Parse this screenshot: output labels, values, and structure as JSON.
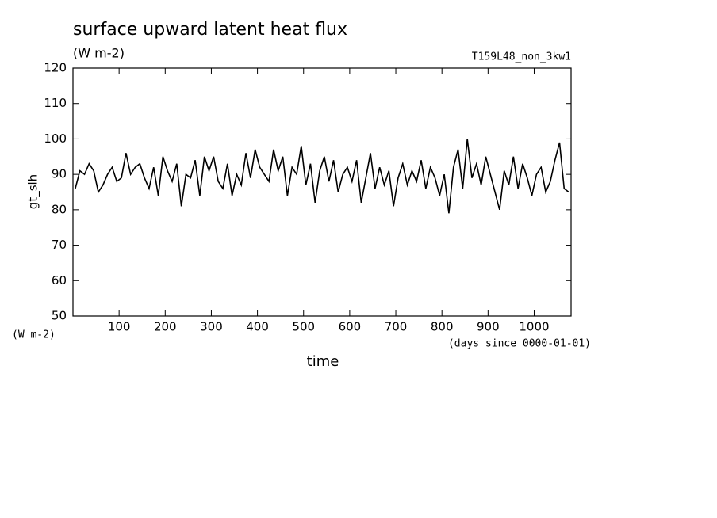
{
  "chart_data": {
    "type": "line",
    "title": "surface upward latent heat flux",
    "subtitle": "(W m-2)",
    "run_label": "T159L48_non_3kw1",
    "y_label": "gt_slh",
    "y_unit": "(W m-2)",
    "x_label": "time",
    "x_unit": "(days since 0000-01-01)",
    "color": "#000000",
    "x": [
      5,
      15,
      25,
      35,
      45,
      55,
      65,
      75,
      85,
      95,
      105,
      115,
      125,
      135,
      145,
      155,
      165,
      175,
      185,
      195,
      205,
      215,
      225,
      235,
      245,
      255,
      265,
      275,
      285,
      295,
      305,
      315,
      325,
      335,
      345,
      355,
      365,
      375,
      385,
      395,
      405,
      415,
      425,
      435,
      445,
      455,
      465,
      475,
      485,
      495,
      505,
      515,
      525,
      535,
      545,
      555,
      565,
      575,
      585,
      595,
      605,
      615,
      625,
      635,
      645,
      655,
      665,
      675,
      685,
      695,
      705,
      715,
      725,
      735,
      745,
      755,
      765,
      775,
      785,
      795,
      805,
      815,
      825,
      835,
      845,
      855,
      865,
      875,
      885,
      895,
      905,
      915,
      925,
      935,
      945,
      955,
      965,
      975,
      985,
      995,
      1005,
      1015,
      1025,
      1035,
      1045,
      1055,
      1065,
      1075
    ],
    "values": [
      86,
      91,
      90,
      93,
      91,
      85,
      87,
      90,
      92,
      88,
      89,
      96,
      90,
      92,
      93,
      89,
      86,
      92,
      84,
      95,
      91,
      88,
      93,
      81,
      90,
      89,
      94,
      84,
      95,
      91,
      95,
      88,
      86,
      93,
      84,
      90,
      87,
      96,
      89,
      97,
      92,
      90,
      88,
      97,
      91,
      95,
      84,
      92,
      90,
      98,
      87,
      93,
      82,
      91,
      95,
      88,
      94,
      85,
      90,
      92,
      88,
      94,
      82,
      89,
      96,
      86,
      92,
      87,
      91,
      81,
      89,
      93,
      87,
      91,
      88,
      94,
      86,
      92,
      89,
      84,
      90,
      79,
      92,
      97,
      86,
      100,
      89,
      93,
      87,
      95,
      90,
      85,
      80,
      91,
      87,
      95,
      86,
      93,
      89,
      84,
      90,
      92,
      85,
      88,
      94,
      99,
      86,
      85
    ],
    "xlim": [
      0,
      1080
    ],
    "ylim": [
      50,
      120
    ],
    "xticks": [
      100,
      200,
      300,
      400,
      500,
      600,
      700,
      800,
      900,
      1000
    ],
    "yticks": [
      50,
      60,
      70,
      80,
      90,
      100,
      110,
      120
    ]
  }
}
